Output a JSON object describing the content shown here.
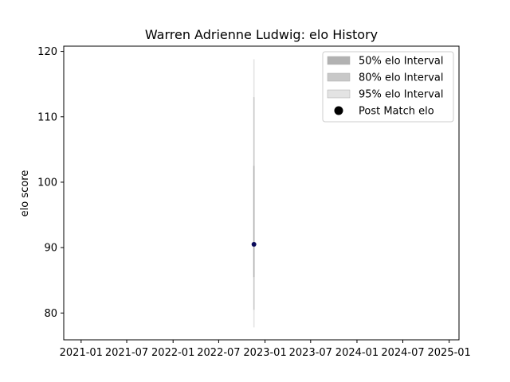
{
  "chart_data": {
    "type": "scatter",
    "title": "Warren Adrienne Ludwig: elo History",
    "xlabel": "",
    "ylabel": "elo score",
    "x_ticks": [
      "2021-01",
      "2021-07",
      "2022-01",
      "2022-07",
      "2023-01",
      "2023-07",
      "2024-01",
      "2024-07",
      "2025-01"
    ],
    "xlim": [
      "2020-10-24",
      "2025-02-09"
    ],
    "ylim": [
      75.9,
      120.8
    ],
    "y_ticks": [
      80,
      90,
      100,
      110,
      120
    ],
    "grid": false,
    "legend_position": "top-right",
    "legend": [
      {
        "label": "50% elo Interval",
        "kind": "band",
        "color": "#b2b2b2"
      },
      {
        "label": "80% elo Interval",
        "kind": "band",
        "color": "#c8c8c8"
      },
      {
        "label": "95% elo Interval",
        "kind": "band",
        "color": "#e3e3e3"
      },
      {
        "label": "Post Match elo",
        "kind": "marker",
        "color": "#000000"
      }
    ],
    "points": [
      {
        "date": "2022-11-18",
        "elo": 90.5,
        "interval_50": [
          85.5,
          102.5
        ],
        "interval_80": [
          80.5,
          113.0
        ],
        "interval_95": [
          77.8,
          118.8
        ],
        "color": "#0a0a5a"
      }
    ]
  }
}
